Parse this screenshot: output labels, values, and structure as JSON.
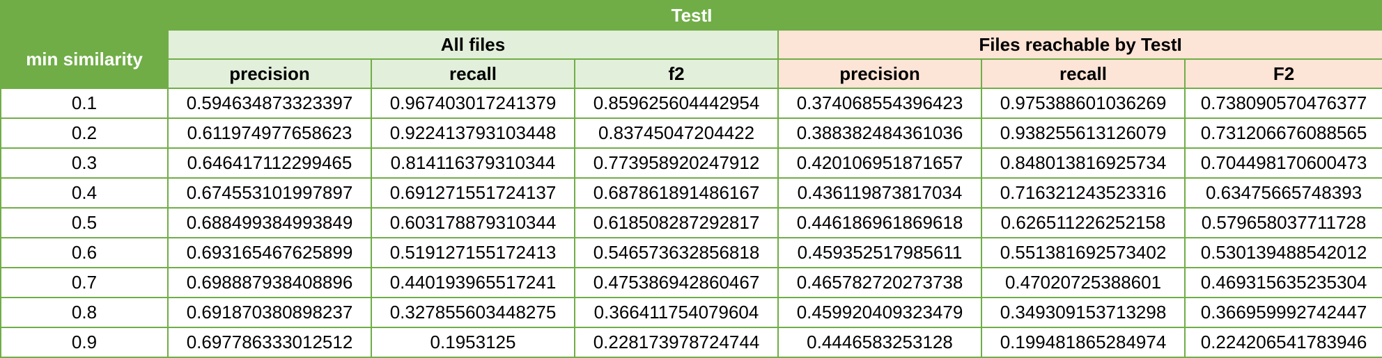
{
  "title": "TestI",
  "row_header": "min similarity",
  "groups": [
    {
      "label": "All files"
    },
    {
      "label": "Files reachable by TestI"
    }
  ],
  "columns": [
    "precision",
    "recall",
    "f2",
    "precision",
    "recall",
    "F2"
  ],
  "rows": [
    [
      "0.1",
      "0.594634873323397",
      "0.967403017241379",
      "0.859625604442954",
      "0.374068554396423",
      "0.975388601036269",
      "0.738090570476377"
    ],
    [
      "0.2",
      "0.611974977658623",
      "0.922413793103448",
      "0.83745047204422",
      "0.388382484361036",
      "0.938255613126079",
      "0.731206676088565"
    ],
    [
      "0.3",
      "0.646417112299465",
      "0.814116379310344",
      "0.773958920247912",
      "0.420106951871657",
      "0.848013816925734",
      "0.704498170600473"
    ],
    [
      "0.4",
      "0.674553101997897",
      "0.691271551724137",
      "0.687861891486167",
      "0.436119873817034",
      "0.716321243523316",
      "0.63475665748393"
    ],
    [
      "0.5",
      "0.688499384993849",
      "0.603178879310344",
      "0.618508287292817",
      "0.446186961869618",
      "0.626511226252158",
      "0.579658037711728"
    ],
    [
      "0.6",
      "0.693165467625899",
      "0.519127155172413",
      "0.546573632856818",
      "0.459352517985611",
      "0.551381692573402",
      "0.530139488542012"
    ],
    [
      "0.7",
      "0.698887938408896",
      "0.440193965517241",
      "0.475386942860467",
      "0.465782720273738",
      "0.47020725388601",
      "0.469315635235304"
    ],
    [
      "0.8",
      "0.691870380898237",
      "0.327855603448275",
      "0.366411754079604",
      "0.459920409323479",
      "0.349309153713298",
      "0.366959992742447"
    ],
    [
      "0.9",
      "0.697786333012512",
      "0.1953125",
      "0.228173978724744",
      "0.4446583253128",
      "0.199481865284974",
      "0.224206541783946"
    ]
  ],
  "colors": {
    "header_green": "#70ad47",
    "all_files_fill": "#e2efda",
    "reachable_fill": "#fce4d6",
    "border": "#70ad47"
  }
}
